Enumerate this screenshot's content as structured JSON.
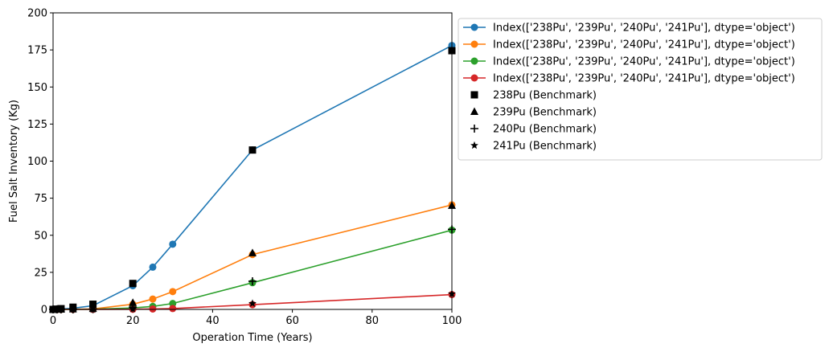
{
  "chart_data": {
    "type": "line",
    "xlabel": "Operation Time (Years)",
    "ylabel": "Fuel Salt Inventory (Kg)",
    "xlim": [
      0,
      100
    ],
    "ylim": [
      0,
      200
    ],
    "xticks": [
      0,
      20,
      40,
      60,
      80,
      100
    ],
    "yticks": [
      0,
      25,
      50,
      75,
      100,
      125,
      150,
      175,
      200
    ],
    "grid": false,
    "legend_position": "outside-top-right",
    "series": [
      {
        "name": "Index(['238Pu', '239Pu', '240Pu', '241Pu'], dtype='object')",
        "color": "#1f77b4",
        "marker": "circle",
        "x": [
          0,
          1,
          2,
          5,
          10,
          20,
          25,
          30,
          50,
          100
        ],
        "y": [
          0,
          0.1,
          0.3,
          0.8,
          2.5,
          16,
          28.5,
          44,
          107.5,
          178
        ]
      },
      {
        "name": "Index(['238Pu', '239Pu', '240Pu', '241Pu'], dtype='object')",
        "color": "#ff7f0e",
        "marker": "circle",
        "x": [
          0,
          1,
          2,
          5,
          10,
          20,
          25,
          30,
          50,
          100
        ],
        "y": [
          0,
          0,
          0,
          0.1,
          0.3,
          3.5,
          7,
          12,
          37,
          70.5
        ]
      },
      {
        "name": "Index(['238Pu', '239Pu', '240Pu', '241Pu'], dtype='object')",
        "color": "#2ca02c",
        "marker": "circle",
        "x": [
          0,
          1,
          2,
          5,
          10,
          20,
          25,
          30,
          50,
          100
        ],
        "y": [
          0,
          0,
          0,
          0,
          0.1,
          1,
          2,
          4,
          18,
          53.5
        ]
      },
      {
        "name": "Index(['238Pu', '239Pu', '240Pu', '241Pu'], dtype='object')",
        "color": "#d62728",
        "marker": "circle",
        "x": [
          0,
          1,
          2,
          5,
          10,
          20,
          25,
          30,
          50,
          100
        ],
        "y": [
          0,
          0,
          0,
          0,
          0,
          0.1,
          0.3,
          0.6,
          3.2,
          10
        ]
      }
    ],
    "benchmarks": [
      {
        "name": "238Pu (Benchmark)",
        "marker": "square",
        "color": "#000000",
        "x": [
          0,
          1,
          2,
          5,
          10,
          20,
          50,
          100
        ],
        "y": [
          0,
          0.2,
          0.5,
          1.5,
          3.5,
          17.5,
          107.5,
          174.5
        ]
      },
      {
        "name": "239Pu (Benchmark)",
        "marker": "triangle",
        "color": "#000000",
        "x": [
          0,
          1,
          2,
          5,
          10,
          20,
          50,
          100
        ],
        "y": [
          0,
          0,
          0,
          0.2,
          0.5,
          4.5,
          38,
          70
        ]
      },
      {
        "name": "240Pu (Benchmark)",
        "marker": "plus",
        "color": "#000000",
        "x": [
          0,
          1,
          2,
          5,
          10,
          20,
          50,
          100
        ],
        "y": [
          0,
          0,
          0,
          0,
          0.2,
          1.5,
          19,
          54
        ]
      },
      {
        "name": "241Pu (Benchmark)",
        "marker": "star",
        "color": "#000000",
        "x": [
          0,
          1,
          2,
          5,
          10,
          20,
          50,
          100
        ],
        "y": [
          0,
          0,
          0,
          0,
          0,
          0.3,
          4,
          10.5
        ]
      }
    ]
  }
}
